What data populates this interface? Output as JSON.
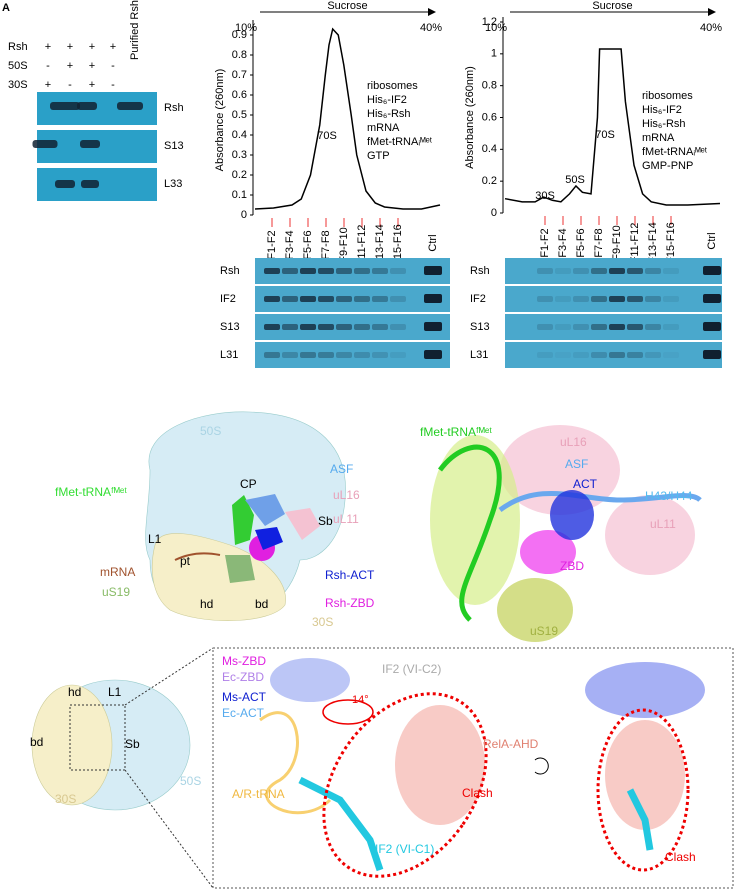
{
  "panel_a": {
    "letter": "A",
    "rows": [
      "Rsh",
      "50S",
      "30S"
    ],
    "lane_header": "Purified Rsh",
    "signs": [
      [
        "+",
        "+",
        "+",
        "+"
      ],
      [
        "-",
        "+",
        "+",
        "-"
      ],
      [
        "+",
        "-",
        "+",
        "-"
      ]
    ],
    "blots": [
      "Rsh",
      "S13",
      "L33"
    ]
  },
  "chart_data": [
    {
      "type": "line",
      "gradient_label": "Sucrose",
      "low": "10%",
      "high": "40%",
      "y_label": "Absorbance (260nm)",
      "ylim": [
        0,
        0.95
      ],
      "yticks": [
        0,
        0.1,
        0.2,
        0.3,
        0.4,
        0.5,
        0.6,
        0.7,
        0.8,
        0.9
      ],
      "xlim": [
        0,
        100
      ],
      "x": [
        0,
        10,
        20,
        25,
        30,
        35,
        38,
        40,
        42,
        45,
        48,
        52,
        55,
        60,
        65,
        70,
        80,
        90,
        100
      ],
      "values": [
        0.03,
        0.035,
        0.05,
        0.08,
        0.2,
        0.45,
        0.7,
        0.85,
        0.93,
        0.9,
        0.75,
        0.5,
        0.3,
        0.12,
        0.06,
        0.04,
        0.03,
        0.03,
        0.05
      ],
      "color": "#000000",
      "peak_labels": [
        "70S"
      ],
      "legend_lines": [
        "ribosomes",
        "His₆-IF2",
        "His₆-Rsh",
        "mRNA",
        "fMet-tRNAᵢᴹᵉᵗ",
        "GTP"
      ],
      "fractions": [
        "F1-F2",
        "F3-F4",
        "F5-F6",
        "F7-F8",
        "F9-F10",
        "F11-F12",
        "F13-F14",
        "F15-F16"
      ],
      "ctrl": "Ctrl",
      "blot_labels": [
        "Rsh",
        "IF2",
        "S13",
        "L31"
      ]
    },
    {
      "type": "line",
      "gradient_label": "Sucrose",
      "low": "10%",
      "high": "40%",
      "y_label": "Absorbance (260nm)",
      "ylim": [
        0,
        1.2
      ],
      "yticks": [
        0,
        0.2,
        0.4,
        0.6,
        0.8,
        1,
        1.2
      ],
      "xlim": [
        0,
        100
      ],
      "x": [
        0,
        8,
        14,
        18,
        22,
        26,
        30,
        33,
        36,
        40,
        43,
        44,
        54,
        56,
        60,
        64,
        68,
        75,
        85,
        100
      ],
      "values": [
        0.09,
        0.07,
        0.07,
        0.1,
        0.08,
        0.07,
        0.12,
        0.17,
        0.13,
        0.12,
        0.6,
        1.03,
        1.03,
        0.7,
        0.3,
        0.12,
        0.07,
        0.05,
        0.05,
        0.06
      ],
      "color": "#000000",
      "peak_labels": [
        "30S",
        "50S",
        "70S"
      ],
      "legend_lines": [
        "ribosomes",
        "His₆-IF2",
        "His₆-Rsh",
        "mRNA",
        "fMet-tRNAᵢᴹᵉᵗ",
        "GMP-PNP"
      ],
      "fractions": [
        "F1-F2",
        "F3-F4",
        "F5-F6",
        "F7-F8",
        "F9-F10",
        "F11-F12",
        "F13-F14",
        "F15-F16"
      ],
      "ctrl": "Ctrl",
      "blot_labels": [
        "Rsh",
        "IF2",
        "S13",
        "L31"
      ]
    }
  ],
  "panel_d": {
    "labels": [
      "50S",
      "fMet-tRNAᶠᴹᵉᵗ",
      "CP",
      "L1",
      "ASF",
      "uL16",
      "uL11",
      "Sb",
      "pt",
      "mRNA",
      "uS19",
      "hd",
      "bd",
      "Rsh-ACT",
      "Rsh-ZBD",
      "30S"
    ]
  },
  "panel_e": {
    "labels": [
      "fMet-tRNAᶠᴹᵉᵗ",
      "uL16",
      "ASF",
      "ACT",
      "H43/H44",
      "uL11",
      "ZBD",
      "uS19"
    ]
  },
  "panel_f": {
    "overview_labels": [
      "hd",
      "L1",
      "bd",
      "Sb",
      "30S",
      "50S"
    ],
    "detail_labels": [
      "Ms-ZBD",
      "Ec-ZBD",
      "Ms-ACT",
      "Ec-ACT",
      "14°",
      "IF2 (VI-C2)",
      "RelA-AHD",
      "A/R-tRNA",
      "Clash",
      "IF2 (VI-C1)",
      "Clash"
    ]
  }
}
